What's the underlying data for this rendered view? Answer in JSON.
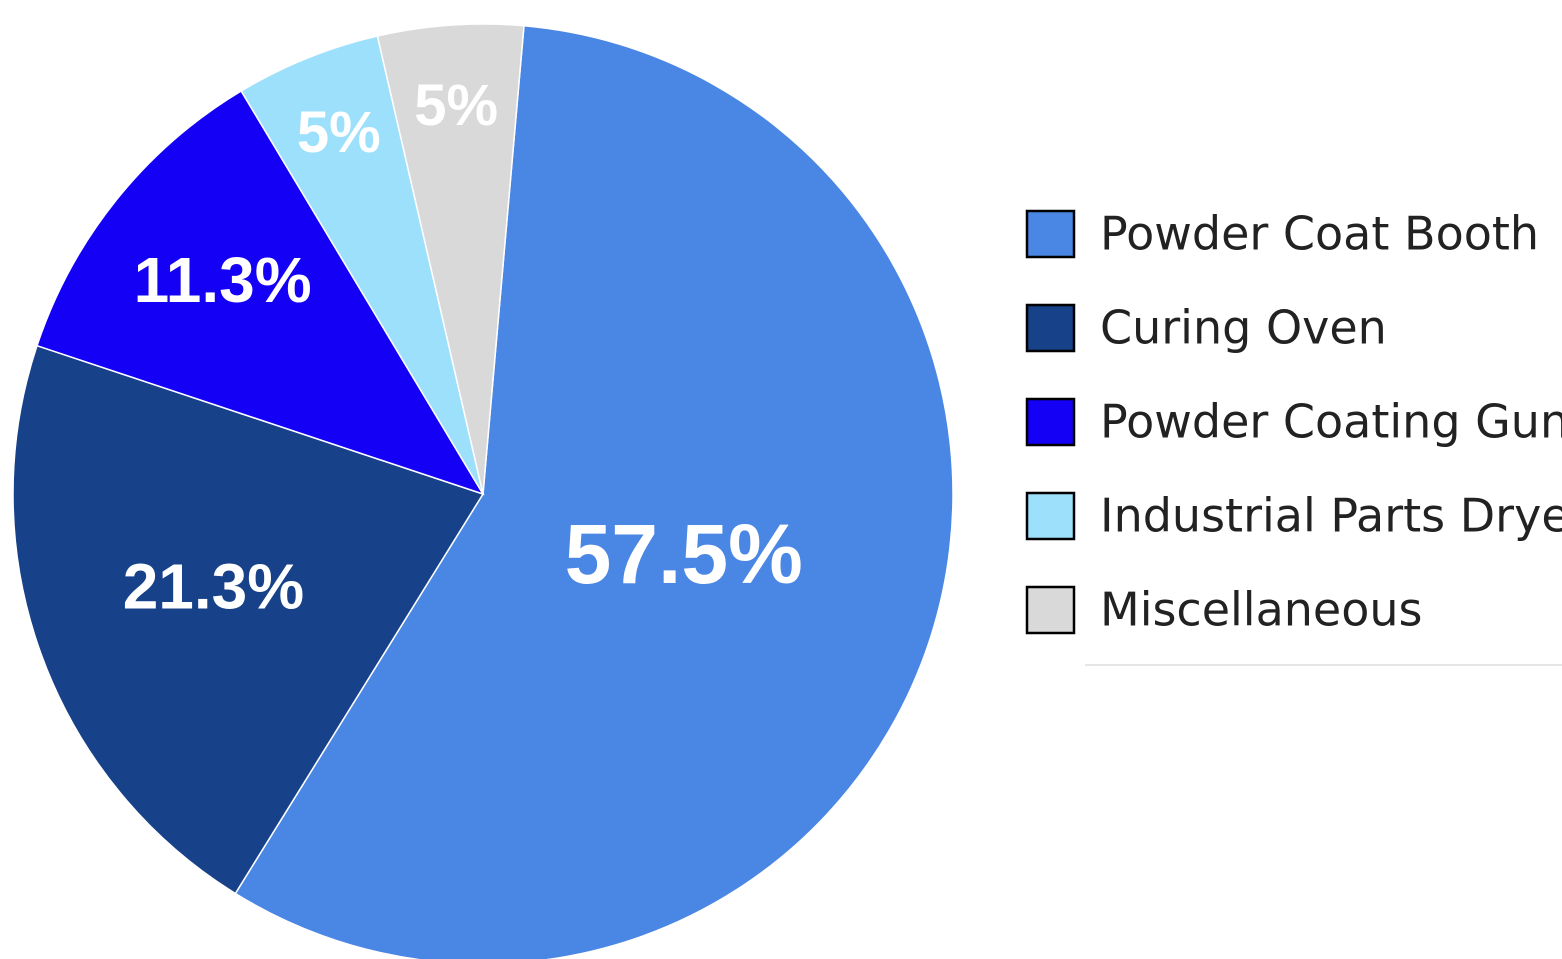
{
  "chart_data": {
    "type": "pie",
    "categories": [
      "Powder Coat Booth",
      "Curing Oven",
      "Powder Coating Gun",
      "Industrial Parts Dryer",
      "Miscellaneous"
    ],
    "values": [
      57.5,
      21.3,
      11.3,
      5,
      5
    ],
    "value_labels": [
      "57.5%",
      "21.3%",
      "11.3%",
      "5%",
      "5%"
    ],
    "colors": [
      "#4a86e3",
      "#174189",
      "#1400f5",
      "#9ce0fc",
      "#d9d9d9"
    ],
    "legend": "right"
  }
}
